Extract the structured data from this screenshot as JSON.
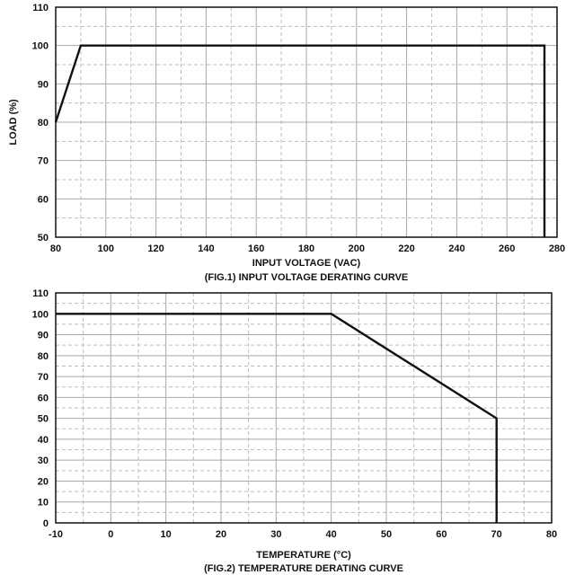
{
  "chart_data": [
    {
      "type": "line",
      "title": "(FIG.1) INPUT VOLTAGE DERATING CURVE",
      "xlabel": "INPUT VOLTAGE (VAC)",
      "ylabel": "LOAD (%)",
      "xlim": [
        80,
        280
      ],
      "ylim": [
        50,
        110
      ],
      "xticks": [
        80,
        100,
        120,
        140,
        160,
        180,
        200,
        220,
        240,
        260,
        280
      ],
      "yticks": [
        50,
        60,
        70,
        80,
        90,
        100,
        110
      ],
      "grid": true,
      "line_color": "#111111",
      "series": [
        {
          "x": [
            80,
            90,
            275,
            275
          ],
          "y": [
            80,
            100,
            100,
            50
          ]
        }
      ]
    },
    {
      "type": "line",
      "title": "(FIG.2) TEMPERATURE DERATING CURVE",
      "xlabel": "TEMPERATURE (°C)",
      "ylabel": "",
      "xlim": [
        -10,
        80
      ],
      "ylim": [
        0,
        110
      ],
      "xticks": [
        -10,
        0,
        10,
        20,
        30,
        40,
        50,
        60,
        70,
        80
      ],
      "yticks": [
        0,
        10,
        20,
        30,
        40,
        50,
        60,
        70,
        80,
        90,
        100,
        110
      ],
      "grid": true,
      "line_color": "#111111",
      "series": [
        {
          "x": [
            -10,
            40,
            70,
            70
          ],
          "y": [
            100,
            100,
            50,
            0
          ]
        }
      ]
    }
  ]
}
